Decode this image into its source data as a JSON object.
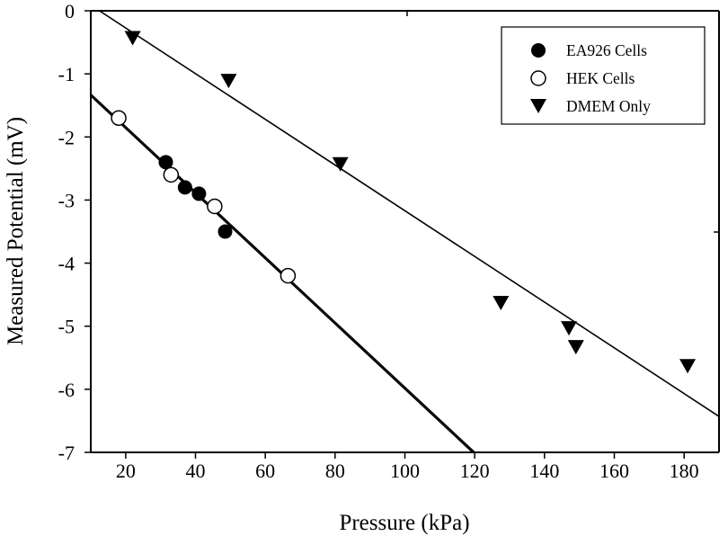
{
  "chart_data": {
    "type": "scatter",
    "title": "",
    "xlabel": "Pressure (kPa)",
    "ylabel": "Measured Potential (mV)",
    "xlim": [
      10,
      190
    ],
    "ylim": [
      -7,
      0
    ],
    "xticks": [
      20,
      40,
      60,
      80,
      100,
      120,
      140,
      160,
      180
    ],
    "yticks": [
      0,
      -1,
      -2,
      -3,
      -4,
      -5,
      -6,
      -7
    ],
    "grid": false,
    "legend_position": "top-right",
    "series": [
      {
        "name": "EA926 Cells",
        "marker": "filled-circle",
        "color": "#000000",
        "points": [
          [
            31.5,
            -2.4
          ],
          [
            37,
            -2.8
          ],
          [
            41,
            -2.9
          ],
          [
            48.5,
            -3.5
          ]
        ],
        "fit_line": [
          [
            10,
            -1.32
          ],
          [
            120,
            -7.0
          ]
        ]
      },
      {
        "name": "HEK Cells",
        "marker": "open-circle",
        "color": "#000000",
        "points": [
          [
            18,
            -1.7
          ],
          [
            33,
            -2.6
          ],
          [
            45.5,
            -3.1
          ],
          [
            66.5,
            -4.2
          ]
        ],
        "fit_line": [
          [
            10,
            -1.35
          ],
          [
            119.4,
            -7.0
          ]
        ]
      },
      {
        "name": "DMEM Only",
        "marker": "filled-triangle-down",
        "color": "#000000",
        "points": [
          [
            22,
            -0.42
          ],
          [
            49.5,
            -1.1
          ],
          [
            81.5,
            -2.42
          ],
          [
            127.5,
            -4.62
          ],
          [
            147,
            -5.02
          ],
          [
            149,
            -5.32
          ],
          [
            181,
            -5.62
          ]
        ],
        "fit_line": [
          [
            12.5,
            0
          ],
          [
            190,
            -6.43
          ]
        ]
      }
    ]
  }
}
